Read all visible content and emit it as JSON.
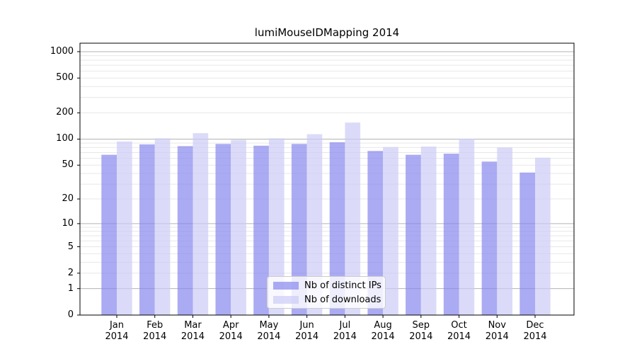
{
  "chart_data": {
    "type": "bar",
    "title": "lumiMouseIDMapping 2014",
    "categories": [
      "Jan 2014",
      "Feb 2014",
      "Mar 2014",
      "Apr 2014",
      "May 2014",
      "Jun 2014",
      "Jul 2014",
      "Aug 2014",
      "Sep 2014",
      "Oct 2014",
      "Nov 2014",
      "Dec 2014"
    ],
    "series": [
      {
        "name": "Nb of distinct IPs",
        "color": "#8888ee",
        "values": [
          66,
          87,
          83,
          88,
          84,
          88,
          92,
          73,
          66,
          68,
          55,
          41
        ]
      },
      {
        "name": "Nb of downloads",
        "color": "#ccccf7",
        "values": [
          94,
          102,
          117,
          98,
          102,
          114,
          155,
          81,
          82,
          101,
          80,
          61
        ]
      }
    ],
    "bar_alpha": 0.7,
    "xlabel": "",
    "ylabel": "",
    "y_axis": {
      "scale": "log10(1+x)",
      "tick_values": [
        1000,
        500,
        200,
        100,
        50,
        20,
        10,
        5,
        2,
        1,
        0
      ],
      "tick_labels": [
        "1000",
        "500",
        "200",
        "100",
        "50",
        "20",
        "10",
        "5",
        "2",
        "1",
        "0"
      ],
      "range": [
        0,
        1250
      ]
    },
    "grid": {
      "on": true,
      "major_values": [
        1,
        10,
        100,
        1000
      ],
      "minor_rule": "2-9 per decade",
      "major_color": "#b3b3b3",
      "minor_color": "#e7e7e7"
    },
    "legend_position": "lower center",
    "axis_color": "#000000"
  }
}
